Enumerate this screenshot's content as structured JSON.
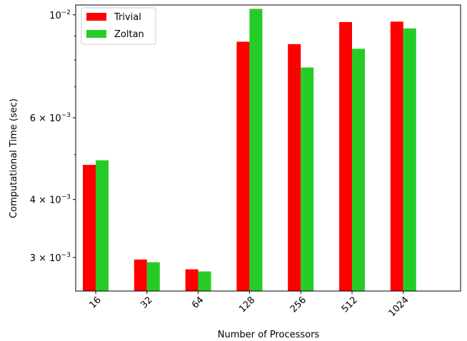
{
  "chart_data": {
    "type": "bar",
    "xlabel": "Number of Processors",
    "ylabel": "Computational Time (sec)",
    "categories": [
      "16",
      "32",
      "64",
      "128",
      "256",
      "512",
      "1024"
    ],
    "series": [
      {
        "name": "Trivial",
        "color": "#ff0000",
        "values": [
          0.00475,
          0.00297,
          0.00283,
          0.00875,
          0.00865,
          0.00965,
          0.00967
        ]
      },
      {
        "name": "Zoltan",
        "color": "#26cc26",
        "values": [
          0.00486,
          0.00293,
          0.0028,
          0.0103,
          0.0077,
          0.00845,
          0.00935
        ]
      }
    ],
    "y_scale": "log",
    "ylim": [
      0.00254,
      0.0105
    ],
    "y_ticks": [
      {
        "value": 0.003,
        "label": "3 × 10⁻³",
        "mantissa": "3",
        "exponent": "−3"
      },
      {
        "value": 0.004,
        "label": "4 × 10⁻³",
        "mantissa": "4",
        "exponent": "−3"
      },
      {
        "value": 0.006,
        "label": "6 × 10⁻³",
        "mantissa": "6",
        "exponent": "−3"
      },
      {
        "value": 0.01,
        "label": "10⁻²",
        "mantissa": "10",
        "exponent": "−2"
      }
    ],
    "y_minor_ticks": [
      0.005,
      0.007,
      0.008,
      0.009
    ],
    "grid": false,
    "legend": "top-left"
  }
}
